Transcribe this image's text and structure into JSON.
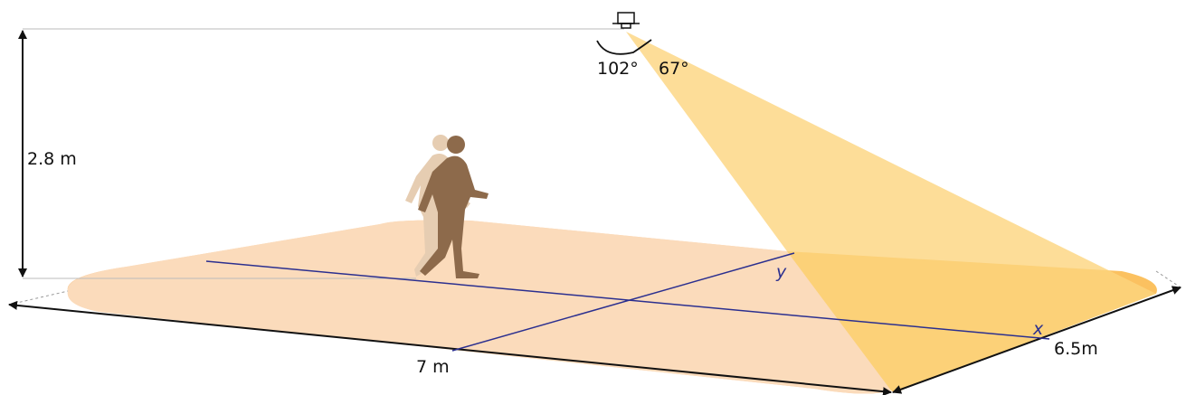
{
  "dimensions": {
    "height": "2.8 m",
    "width": "7 m",
    "depth": "6.5m"
  },
  "angles": [
    "102°",
    "67°"
  ],
  "axes": {
    "x": "x",
    "y": "y"
  }
}
